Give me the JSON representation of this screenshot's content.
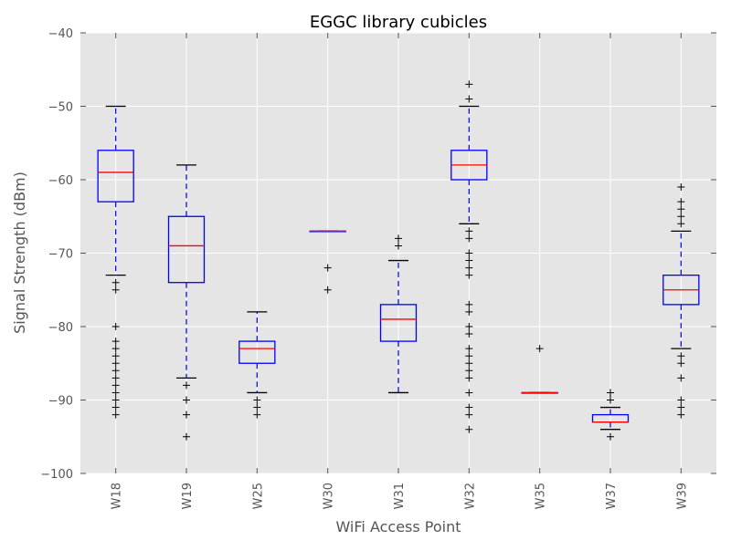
{
  "chart_data": {
    "type": "box",
    "title": "EGGC library cubicles",
    "xlabel": "WiFi Access Point",
    "ylabel": "Signal Strength (dBm)",
    "ylim": [
      -100,
      -40
    ],
    "yticks": [
      -100,
      -90,
      -80,
      -70,
      -60,
      -50,
      -40
    ],
    "ytick_labels": [
      "−100",
      "−90",
      "−80",
      "−70",
      "−60",
      "−50",
      "−40"
    ],
    "grid": true,
    "legend": "none",
    "colors": {
      "plot_bg": "#e5e5e5",
      "grid": "#ffffff",
      "box": "#0000ff",
      "median": "#ff0000",
      "whisker": "#0000ff",
      "cap": "#000000",
      "flier": "#000000",
      "text": "#555555",
      "title": "#000000"
    },
    "categories": [
      "W18",
      "W19",
      "W25",
      "W30",
      "W31",
      "W32",
      "W35",
      "W37",
      "W39"
    ],
    "boxes": [
      {
        "label": "W18",
        "whisker_low": -73,
        "q1": -63,
        "median": -59,
        "q3": -56,
        "whisker_high": -50,
        "fliers": [
          -74,
          -75,
          -80,
          -82,
          -83,
          -84,
          -85,
          -86,
          -87,
          -88,
          -89,
          -90,
          -91,
          -92
        ]
      },
      {
        "label": "W19",
        "whisker_low": -87,
        "q1": -74,
        "median": -69,
        "q3": -65,
        "whisker_high": -58,
        "fliers": [
          -88,
          -90,
          -92,
          -95
        ]
      },
      {
        "label": "W25",
        "whisker_low": -89,
        "q1": -85,
        "median": -83,
        "q3": -82,
        "whisker_high": -78,
        "fliers": [
          -90,
          -91,
          -92
        ]
      },
      {
        "label": "W30",
        "whisker_low": -67,
        "q1": -67,
        "median": -67,
        "q3": -67,
        "whisker_high": -67,
        "fliers": [
          -72,
          -75
        ]
      },
      {
        "label": "W31",
        "whisker_low": -89,
        "q1": -82,
        "median": -79,
        "q3": -77,
        "whisker_high": -71,
        "fliers": [
          -68,
          -69
        ]
      },
      {
        "label": "W32",
        "whisker_low": -66,
        "q1": -60,
        "median": -58,
        "q3": -56,
        "whisker_high": -50,
        "fliers": [
          -47,
          -49,
          -67,
          -68,
          -70,
          -71,
          -72,
          -73,
          -77,
          -78,
          -80,
          -81,
          -83,
          -84,
          -85,
          -86,
          -87,
          -89,
          -91,
          -92,
          -94
        ]
      },
      {
        "label": "W35",
        "whisker_low": -89,
        "q1": -89,
        "median": -89,
        "q3": -89,
        "whisker_high": -89,
        "fliers": [
          -83
        ]
      },
      {
        "label": "W37",
        "whisker_low": -94,
        "q1": -93,
        "median": -93,
        "q3": -92,
        "whisker_high": -91,
        "fliers": [
          -89,
          -90,
          -95
        ]
      },
      {
        "label": "W39",
        "whisker_low": -83,
        "q1": -77,
        "median": -75,
        "q3": -73,
        "whisker_high": -67,
        "fliers": [
          -61,
          -63,
          -64,
          -65,
          -66,
          -84,
          -85,
          -87,
          -90,
          -91,
          -92
        ]
      }
    ]
  }
}
